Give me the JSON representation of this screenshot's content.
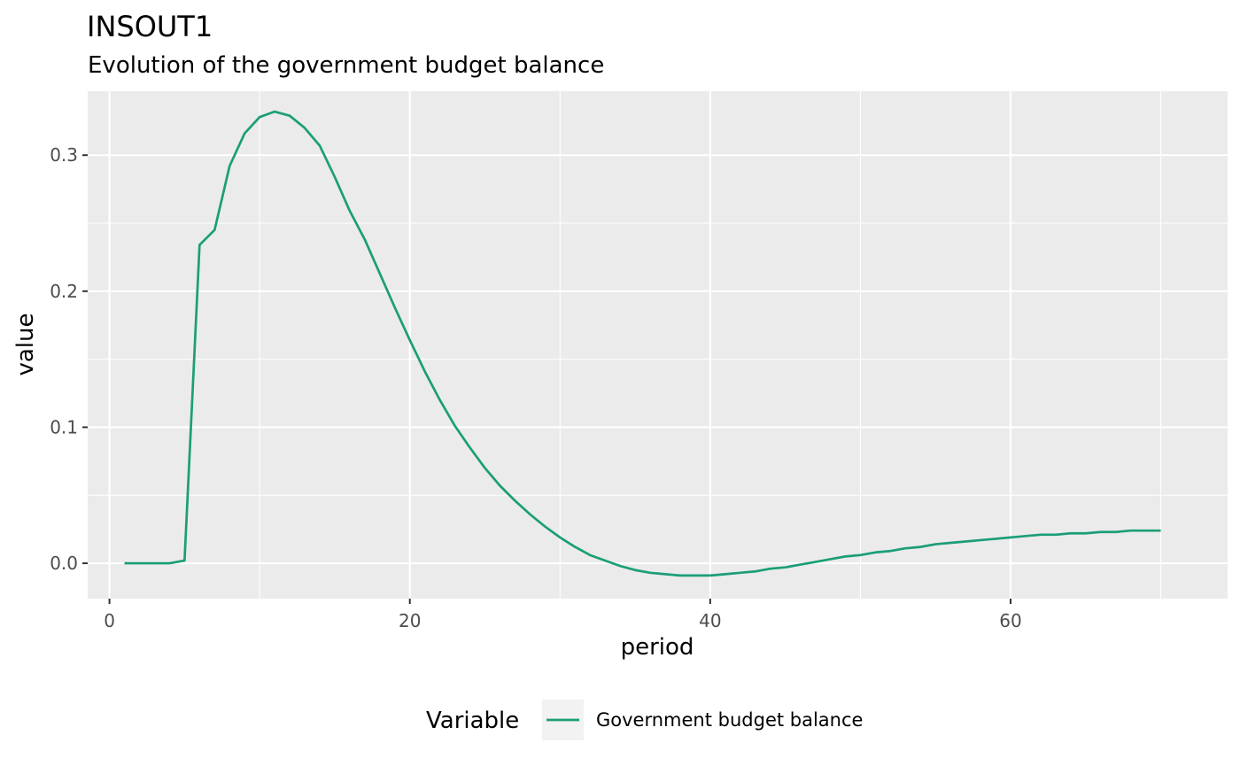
{
  "chart_data": {
    "type": "line",
    "title": "INSOUT1",
    "subtitle": "Evolution of the government budget balance",
    "xlabel": "period",
    "ylabel": "value",
    "xlim": [
      -1.45,
      74.45
    ],
    "ylim": [
      -0.026,
      0.347
    ],
    "x_ticks": [
      0,
      20,
      40,
      60
    ],
    "x_tick_labels": [
      "0",
      "20",
      "40",
      "60"
    ],
    "y_ticks": [
      0.0,
      0.1,
      0.2,
      0.3
    ],
    "y_tick_labels": [
      "0.0",
      "0.1",
      "0.2",
      "0.3"
    ],
    "grid": true,
    "legend_position": "bottom",
    "legend_title": "Variable",
    "colors": {
      "panel": "#EBEBEB",
      "grid": "#FFFFFF",
      "series": "#1B9E77"
    },
    "series": [
      {
        "name": "Government budget balance",
        "color": "#1B9E77",
        "x": [
          1,
          2,
          3,
          4,
          5,
          6,
          7,
          8,
          9,
          10,
          11,
          12,
          13,
          14,
          15,
          16,
          17,
          18,
          19,
          20,
          21,
          22,
          23,
          24,
          25,
          26,
          27,
          28,
          29,
          30,
          31,
          32,
          33,
          34,
          35,
          36,
          37,
          38,
          39,
          40,
          41,
          42,
          43,
          44,
          45,
          46,
          47,
          48,
          49,
          50,
          51,
          52,
          53,
          54,
          55,
          56,
          57,
          58,
          59,
          60,
          61,
          62,
          63,
          64,
          65,
          66,
          67,
          68,
          69,
          70
        ],
        "values": [
          0.0,
          0.0,
          0.0,
          0.0,
          0.002,
          0.234,
          0.245,
          0.292,
          0.316,
          0.328,
          0.332,
          0.329,
          0.32,
          0.307,
          0.284,
          0.259,
          0.238,
          0.213,
          0.188,
          0.164,
          0.141,
          0.12,
          0.101,
          0.085,
          0.07,
          0.057,
          0.046,
          0.036,
          0.027,
          0.019,
          0.012,
          0.006,
          0.002,
          -0.002,
          -0.005,
          -0.007,
          -0.008,
          -0.009,
          -0.009,
          -0.009,
          -0.008,
          -0.007,
          -0.006,
          -0.004,
          -0.003,
          -0.001,
          0.001,
          0.003,
          0.005,
          0.006,
          0.008,
          0.009,
          0.011,
          0.012,
          0.014,
          0.015,
          0.016,
          0.017,
          0.018,
          0.019,
          0.02,
          0.021,
          0.021,
          0.022,
          0.022,
          0.023,
          0.023,
          0.024,
          0.024,
          0.024
        ]
      }
    ]
  }
}
